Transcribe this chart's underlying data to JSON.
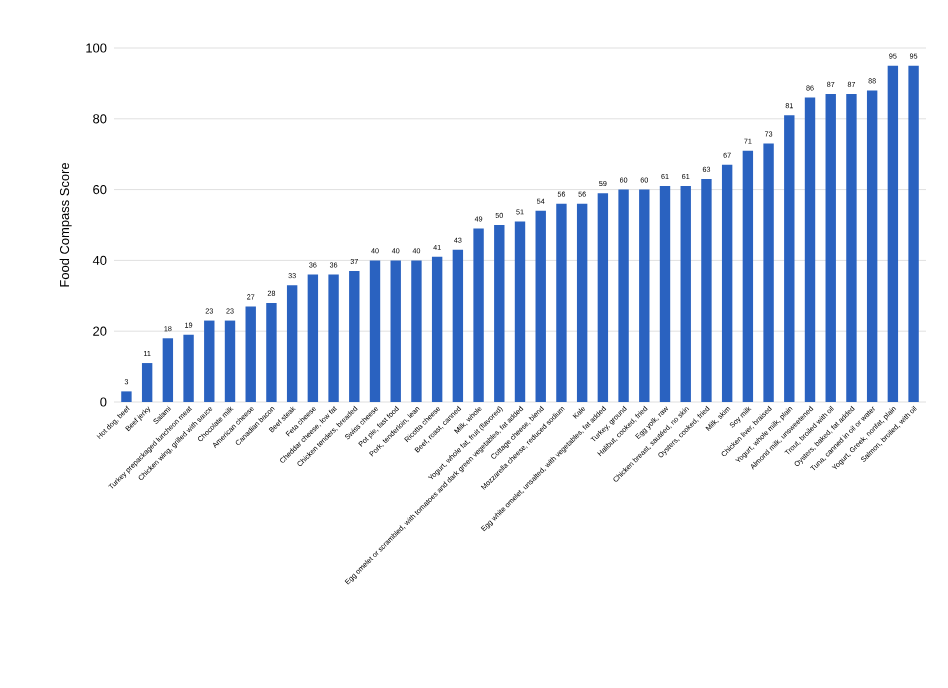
{
  "chart_data": {
    "type": "bar",
    "ylabel": "Food Compass Score",
    "categories": [
      "Hot dog, beef",
      "Beef jerky",
      "Salami",
      "Turkey prepackaged luncheon meat",
      "Chicken wing, grilled with sauce",
      "Chocolate milk",
      "American cheese",
      "Canadian bacon",
      "Beef steak",
      "Feta cheese",
      "Cheddar cheese, low fat",
      "Chicken tenders, breaded",
      "Swiss cheese",
      "Pot pie, fast food",
      "Pork, tenderloin, lean",
      "Ricotta cheese",
      "Beef, roast, canned",
      "Milk, whole",
      "Yogurt, whole fat, fruit (flavored)",
      "Egg omelet or scrambled, with tomatoes and dark green vegetables, fat added",
      "Cottage cheese, blend",
      "Mozzarella cheese, reduced sodium",
      "Kale",
      "Egg white omelet, unsalted, with vegetables, fat added",
      "Turkey, ground",
      "Halibut, cooked, fried",
      "Egg yolk, raw",
      "Chicken breast, sautéed, no skin",
      "Oysters, cooked, fried",
      "Milk, skim",
      "Soy milk",
      "Chicken liver, braised",
      "Yogurt, whole milk, plain",
      "Almond milk, unsweetened",
      "Trout, broiled with oil",
      "Oysters, baked, fat added",
      "Tuna, canned in oil or water",
      "Yogurt, Greek, nonfat, plain",
      "Salmon, broiled, with oil"
    ],
    "values": [
      3,
      11,
      18,
      19,
      23,
      23,
      27,
      28,
      33,
      36,
      36,
      37,
      40,
      40,
      40,
      41,
      43,
      49,
      50,
      51,
      54,
      56,
      56,
      59,
      60,
      60,
      61,
      61,
      63,
      67,
      71,
      73,
      81,
      86,
      87,
      87,
      88,
      95,
      95
    ],
    "color": "#2a62c0",
    "ylim": [
      0,
      100
    ],
    "yticks": [
      0,
      20,
      40,
      60,
      80,
      100
    ],
    "grid": "y",
    "data_labels": true
  }
}
